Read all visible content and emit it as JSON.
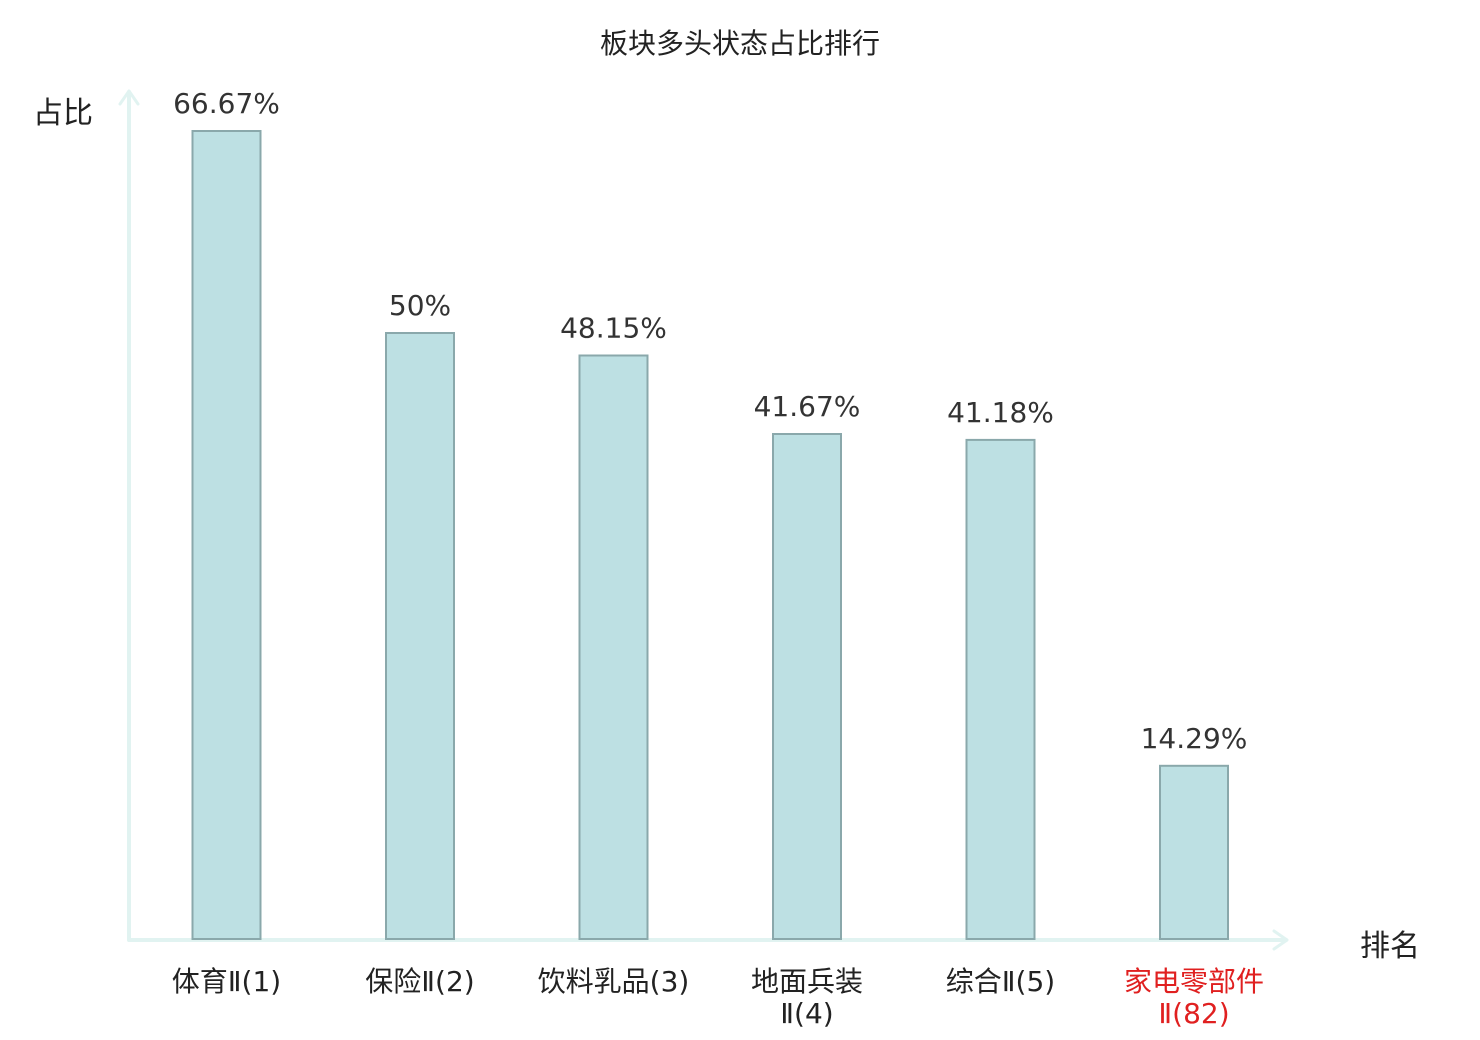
{
  "chart_data": {
    "type": "bar",
    "title": "板块多头状态占比排行",
    "xlabel": "排名",
    "ylabel": "占比",
    "categories": [
      "体育Ⅱ(1)",
      "保险Ⅱ(2)",
      "饮料乳品(3)",
      "地面兵装Ⅱ(4)",
      "综合Ⅱ(5)",
      "家电零部件Ⅱ(82)"
    ],
    "values": [
      66.67,
      50,
      48.15,
      41.67,
      41.18,
      14.29
    ],
    "value_labels": [
      "66.67%",
      "50%",
      "48.15%",
      "41.67%",
      "41.18%",
      "14.29%"
    ],
    "ylim": [
      0,
      66.67
    ],
    "grid": false,
    "highlight_index": 5,
    "colors": {
      "bar_fill": "#bde0e3",
      "bar_stroke": "#8aa8ab",
      "axis": "#e1f3f1",
      "highlight_label": "#e02020",
      "label": "#222222"
    }
  }
}
